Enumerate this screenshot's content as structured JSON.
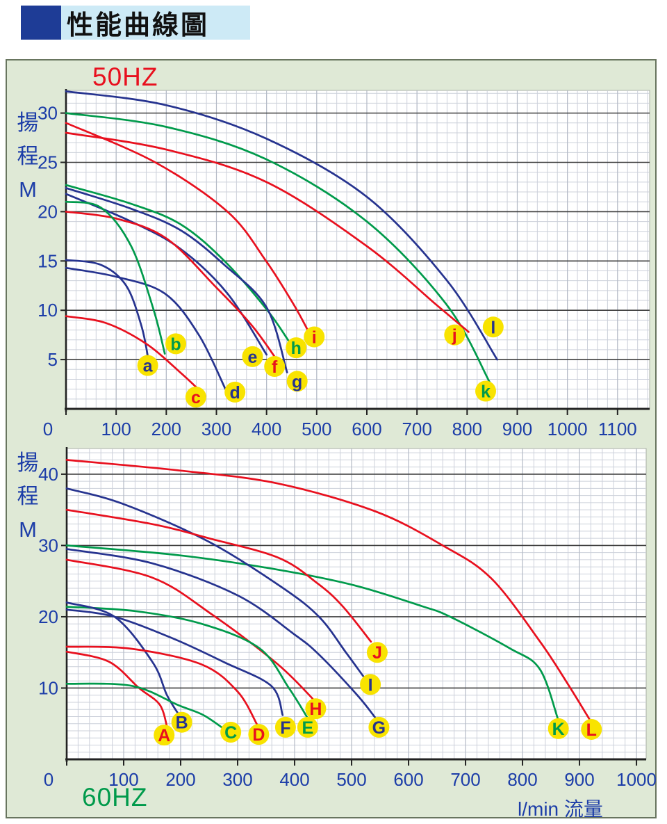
{
  "header": {
    "title": "性能曲線圖"
  },
  "colors": {
    "red": "#e8101e",
    "green": "#009a4b",
    "blue": "#26338f",
    "axis_text": "#1c3da8",
    "label_circle": "#f8e300",
    "panel_bg": "#dfe9d6",
    "panel_border": "#68755f",
    "title_square": "#1e3c96",
    "title_strip_bg": "#cdeaf6",
    "grid_minor": "#ccd0da",
    "grid_major_v": "#b4bac6",
    "grid_major_h": "#3f3f3f",
    "axis_line": "#222222"
  },
  "x_axis_title": "l/min 流量",
  "chart_data": [
    {
      "type": "line",
      "title": "50HZ",
      "title_color_name": "red",
      "ylabel": "揚程 M",
      "ylabel_chars": [
        "揚",
        "程",
        "M"
      ],
      "xlabel": "l/min",
      "xlim": [
        0,
        1164
      ],
      "ylim": [
        0,
        32.3
      ],
      "xticks": [
        0,
        100,
        200,
        300,
        400,
        500,
        600,
        700,
        800,
        900,
        1000,
        1100
      ],
      "yticks": [
        5,
        10,
        15,
        20,
        25,
        30
      ],
      "x_minor_step": 20,
      "y_minor_step": 1,
      "grid": true,
      "legend_position": "none",
      "series": [
        {
          "name": "l",
          "color_name": "blue",
          "points": [
            [
              0,
              32.2
            ],
            [
              200,
              30.8
            ],
            [
              400,
              27.4
            ],
            [
              600,
              21.5
            ],
            [
              760,
              13
            ],
            [
              860,
              5
            ]
          ],
          "label": {
            "x": 852,
            "y": 8.3
          }
        },
        {
          "name": "k",
          "color_name": "green",
          "points": [
            [
              0,
              30
            ],
            [
              200,
              28.6
            ],
            [
              400,
              25.3
            ],
            [
              600,
              19
            ],
            [
              760,
              10.5
            ],
            [
              845,
              2.7
            ]
          ],
          "label": {
            "x": 837,
            "y": 1.8
          }
        },
        {
          "name": "j",
          "color_name": "red",
          "points": [
            [
              0,
              28
            ],
            [
              200,
              26.3
            ],
            [
              400,
              23
            ],
            [
              600,
              16.5
            ],
            [
              740,
              10.5
            ],
            [
              803,
              7.8
            ]
          ],
          "label": {
            "x": 775,
            "y": 7.5
          }
        },
        {
          "name": "i",
          "color_name": "red",
          "points": [
            [
              0,
              29
            ],
            [
              178,
              25
            ],
            [
              322,
              20
            ],
            [
              399,
              15
            ],
            [
              455,
              10.5
            ],
            [
              482,
              8
            ]
          ],
          "label": {
            "x": 495,
            "y": 7.3
          }
        },
        {
          "name": "h",
          "color_name": "green",
          "points": [
            [
              0,
              22.7
            ],
            [
              130,
              20.8
            ],
            [
              229,
              18.7
            ],
            [
              316,
              15
            ],
            [
              400,
              10.1
            ],
            [
              444,
              6.9
            ]
          ],
          "label": {
            "x": 459,
            "y": 6.2
          }
        },
        {
          "name": "g",
          "color_name": "blue",
          "points": [
            [
              0,
              22.4
            ],
            [
              130,
              20.3
            ],
            [
              229,
              18.1
            ],
            [
              316,
              14.6
            ],
            [
              400,
              10.3
            ],
            [
              441,
              3.7
            ]
          ],
          "label": {
            "x": 461,
            "y": 2.8
          }
        },
        {
          "name": "e",
          "color_name": "blue",
          "points": [
            [
              0,
              21.8
            ],
            [
              130,
              19
            ],
            [
              229,
              16.2
            ],
            [
              322,
              11.7
            ],
            [
              400,
              5.5
            ]
          ],
          "label": {
            "x": 372,
            "y": 5.3
          }
        },
        {
          "name": "f",
          "color_name": "red",
          "points": [
            [
              0,
              20
            ],
            [
              100,
              19.3
            ],
            [
              200,
              17.3
            ],
            [
              300,
              12.3
            ],
            [
              370,
              8.5
            ],
            [
              416,
              5.3
            ]
          ],
          "label": {
            "x": 416,
            "y": 4.3
          }
        },
        {
          "name": "d",
          "color_name": "blue",
          "points": [
            [
              0,
              14.3
            ],
            [
              100,
              13.4
            ],
            [
              197,
              11.7
            ],
            [
              265,
              7.5
            ],
            [
              318,
              2
            ]
          ],
          "label": {
            "x": 337,
            "y": 1.7
          }
        },
        {
          "name": "b",
          "color_name": "green",
          "points": [
            [
              0,
              21
            ],
            [
              70,
              20.4
            ],
            [
              130,
              16.5
            ],
            [
              175,
              10
            ],
            [
              197,
              5.6
            ]
          ],
          "label": {
            "x": 219,
            "y": 6.6
          }
        },
        {
          "name": "a",
          "color_name": "blue",
          "points": [
            [
              0,
              15.1
            ],
            [
              70,
              14.6
            ],
            [
              120,
              12.5
            ],
            [
              150,
              8.5
            ],
            [
              163,
              5.4
            ]
          ],
          "label": {
            "x": 163,
            "y": 4.4
          }
        },
        {
          "name": "c",
          "color_name": "red",
          "points": [
            [
              0,
              9.4
            ],
            [
              80,
              8.7
            ],
            [
              160,
              6.6
            ],
            [
              230,
              3.6
            ],
            [
              278,
              1.3
            ]
          ],
          "label": {
            "x": 259,
            "y": 1.2
          }
        }
      ]
    },
    {
      "type": "line",
      "title": "60HZ",
      "title_color_name": "green",
      "ylabel": "揚程 M",
      "ylabel_chars": [
        "揚",
        "程",
        "M"
      ],
      "xlabel": "l/min 流量",
      "xlim": [
        0,
        1017
      ],
      "ylim": [
        0,
        43.6
      ],
      "xticks": [
        0,
        100,
        200,
        300,
        400,
        500,
        600,
        700,
        800,
        900,
        1000
      ],
      "yticks": [
        10,
        20,
        30,
        40
      ],
      "x_minor_step": 20,
      "y_minor_step": 1,
      "grid": true,
      "legend_position": "none",
      "series": [
        {
          "name": "L",
          "color_name": "red",
          "points": [
            [
              0,
              42
            ],
            [
              200,
              40.5
            ],
            [
              370,
              38.7
            ],
            [
              541,
              34.8
            ],
            [
              660,
              30
            ],
            [
              745,
              25.4
            ],
            [
              830,
              16.6
            ],
            [
              880,
              10.5
            ],
            [
              917,
              5.7
            ]
          ],
          "label": {
            "x": 921,
            "y": 4.2
          }
        },
        {
          "name": "K",
          "color_name": "green",
          "points": [
            [
              0,
              30
            ],
            [
              200,
              28.6
            ],
            [
              371,
              26.6
            ],
            [
              505,
              24.4
            ],
            [
              623,
              21.5
            ],
            [
              673,
              20
            ],
            [
              777,
              15.6
            ],
            [
              830,
              12.7
            ],
            [
              862,
              5.7
            ]
          ],
          "label": {
            "x": 863,
            "y": 4.3
          }
        },
        {
          "name": "I",
          "color_name": "blue",
          "points": [
            [
              0,
              38
            ],
            [
              100,
              35.8
            ],
            [
              250,
              30.5
            ],
            [
              380,
              24
            ],
            [
              444,
              19.9
            ],
            [
              490,
              15
            ],
            [
              521,
              11.6
            ]
          ],
          "label": {
            "x": 533,
            "y": 10.5
          }
        },
        {
          "name": "J",
          "color_name": "red",
          "points": [
            [
              0,
              35
            ],
            [
              150,
              33
            ],
            [
              250,
              31
            ],
            [
              371,
              28.3
            ],
            [
              440,
              24.7
            ],
            [
              484,
              21.5
            ],
            [
              534,
              16.5
            ]
          ],
          "label": {
            "x": 545,
            "y": 15
          }
        },
        {
          "name": "G",
          "color_name": "blue",
          "points": [
            [
              0,
              29.5
            ],
            [
              150,
              27.5
            ],
            [
              300,
              23
            ],
            [
              400,
              17.5
            ],
            [
              444,
              14.6
            ],
            [
              510,
              9
            ],
            [
              541,
              5.9
            ]
          ],
          "label": {
            "x": 548,
            "y": 4.5
          }
        },
        {
          "name": "H",
          "color_name": "red",
          "points": [
            [
              0,
              28
            ],
            [
              150,
              25.5
            ],
            [
              257,
              20.2
            ],
            [
              371,
              13.3
            ],
            [
              440,
              7.8
            ]
          ],
          "label": {
            "x": 437,
            "y": 7.1
          }
        },
        {
          "name": "F",
          "color_name": "blue",
          "points": [
            [
              0,
              21
            ],
            [
              84,
              20
            ],
            [
              188,
              16.9
            ],
            [
              277,
              13.6
            ],
            [
              359,
              10.3
            ],
            [
              379,
              6.2
            ]
          ],
          "label": {
            "x": 384,
            "y": 4.5
          }
        },
        {
          "name": "E",
          "color_name": "green",
          "points": [
            [
              0,
              21.4
            ],
            [
              120,
              20.8
            ],
            [
              237,
              19
            ],
            [
              338,
              15.6
            ],
            [
              390,
              10
            ],
            [
              422,
              5.9
            ]
          ],
          "label": {
            "x": 423,
            "y": 4.5
          }
        },
        {
          "name": "B",
          "color_name": "blue",
          "points": [
            [
              0,
              22
            ],
            [
              84,
              20
            ],
            [
              151,
              13.6
            ],
            [
              176,
              9
            ],
            [
              199,
              6
            ]
          ],
          "label": {
            "x": 202,
            "y": 5.2
          }
        },
        {
          "name": "D",
          "color_name": "red",
          "points": [
            [
              0,
              15.8
            ],
            [
              115,
              15.5
            ],
            [
              237,
              13.3
            ],
            [
              300,
              9.5
            ],
            [
              334,
              4.9
            ]
          ],
          "label": {
            "x": 337,
            "y": 3.5
          }
        },
        {
          "name": "A",
          "color_name": "red",
          "points": [
            [
              0,
              15.1
            ],
            [
              74,
              13.7
            ],
            [
              127,
              10
            ],
            [
              163,
              7.7
            ],
            [
              176,
              4.6
            ]
          ],
          "label": {
            "x": 171,
            "y": 3.4
          }
        },
        {
          "name": "C",
          "color_name": "green",
          "points": [
            [
              0,
              10.6
            ],
            [
              115,
              10.3
            ],
            [
              196,
              7.6
            ],
            [
              240,
              6.2
            ],
            [
              277,
              4.2
            ]
          ],
          "label": {
            "x": 288,
            "y": 3.8
          }
        }
      ]
    }
  ]
}
